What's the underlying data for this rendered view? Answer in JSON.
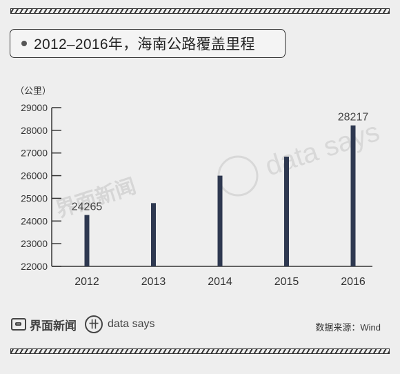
{
  "header": {
    "title": "2012–2016年，海南公路覆盖里程"
  },
  "chart_data": {
    "type": "bar",
    "title": "2012–2016年，海南公路覆盖里程",
    "ylabel": "（公里）",
    "categories": [
      "2012",
      "2013",
      "2014",
      "2015",
      "2016"
    ],
    "series": [
      {
        "values": [
          24265,
          24790,
          26000,
          26840,
          28217
        ]
      }
    ],
    "data_labels": [
      "24265",
      "",
      "",
      "",
      "28217"
    ],
    "ylim": [
      22000,
      29000
    ],
    "yticks": [
      "22000",
      "23000",
      "24000",
      "25000",
      "26000",
      "27000",
      "28000",
      "29000"
    ],
    "bar_color": "#2e3850",
    "grid": false,
    "legend": "none"
  },
  "footer": {
    "brand": "界面新闻",
    "brand2": "data says",
    "brand2_symbol": "卄",
    "source": "数据来源：Wind"
  },
  "watermarks": {
    "brand": "界面新闻",
    "brand2": "data says"
  },
  "colors": {
    "background": "#eeeeee",
    "bar": "#2e3850",
    "axis": "#333333"
  }
}
